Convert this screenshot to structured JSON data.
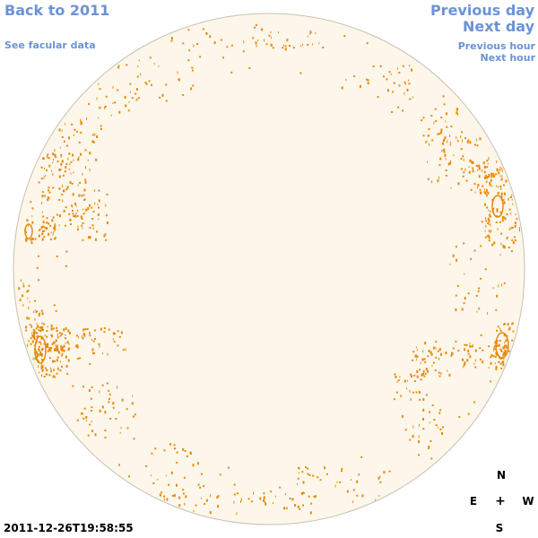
{
  "nav": {
    "back_label": "Back to 2011",
    "facular_label": "See facular data",
    "prev_day_label": "Previous day",
    "next_day_label": "Next day",
    "prev_hour_label": "Previous hour",
    "next_hour_label": "Next hour"
  },
  "compass": {
    "north": "N",
    "south": "S",
    "east": "E",
    "west": "W",
    "center": "+"
  },
  "timestamp": "2011-12-26T19:58:55",
  "colors": {
    "disk_fill": "#fdf7eb",
    "disk_edge": "#c8c0b0",
    "plage": "#e8890c",
    "link": "#6b93d6"
  }
}
